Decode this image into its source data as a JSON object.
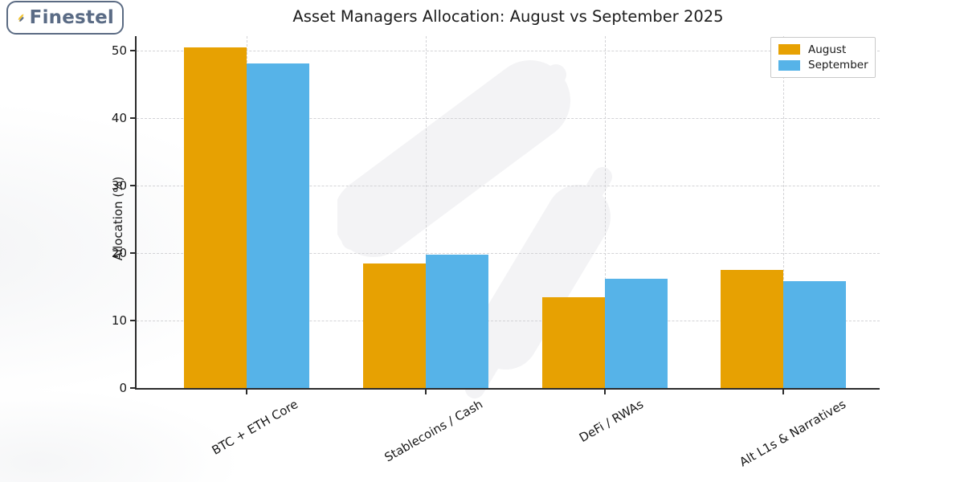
{
  "logo": {
    "text": "Finestel",
    "border_color": "#5b6b83",
    "text_color": "#5a6b85",
    "icon": "candlesticks-icon",
    "icon_colors": {
      "yellow": "#f3c433",
      "slate": "#5e6e87"
    }
  },
  "chart_data": {
    "type": "bar",
    "title": "Asset Managers Allocation: August vs September 2025",
    "xlabel": "",
    "ylabel": "Allocation (%)",
    "categories": [
      "BTC + ETH Core",
      "Stablecoins / Cash",
      "DeFi / RWAs",
      "Alt L1s & Narratives"
    ],
    "series": [
      {
        "name": "August",
        "color": "#E7A102",
        "values": [
          50.5,
          18.5,
          13.5,
          17.5
        ]
      },
      {
        "name": "September",
        "color": "#56B3E8",
        "values": [
          48.2,
          19.8,
          16.2,
          15.8
        ]
      }
    ],
    "ylim": [
      0,
      52.2
    ],
    "yticks": [
      0,
      10,
      20,
      30,
      40,
      50
    ],
    "grid": true,
    "grid_style": "dashed",
    "legend_position": "upper right",
    "xtick_rotation": 30
  },
  "watermark": {
    "name": "finestel-candlestick-watermark",
    "color": "#f3f3f5"
  }
}
